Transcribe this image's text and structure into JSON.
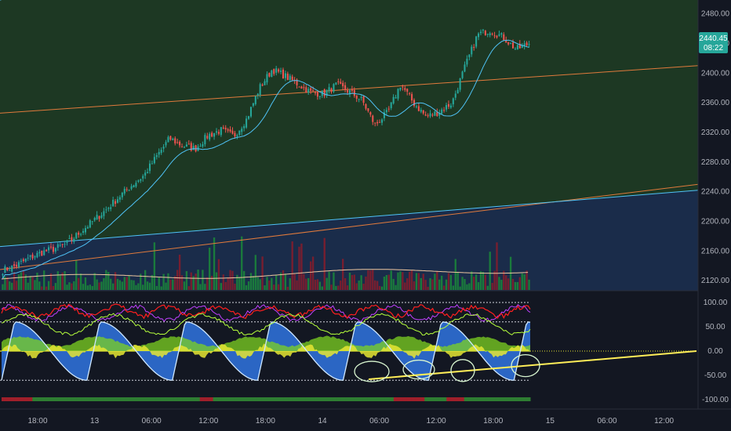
{
  "colors": {
    "background": "#131722",
    "green_zone": "#1e3a24",
    "blue_zone": "#1a2c4a",
    "candle_up": "#26a69a",
    "candle_down": "#ef5350",
    "ma_line": "#4fc3f7",
    "trend_orange": "#e07a3c",
    "trend_yellow": "#ffd54f",
    "volume_up": "#1b8a3a",
    "volume_down": "#8a1c2a",
    "oscillator_red": "#ff1f1f",
    "oscillator_purple": "#c040ff",
    "oscillator_green": "#7ed321",
    "oscillator_blue": "#2f6fd6",
    "oscillator_yellow": "#e6e632",
    "drawn_line": "#ffee58",
    "price_badge": "#26a69a"
  },
  "price_badge": {
    "price": "2440.45",
    "countdown": "08:22"
  },
  "chart_data": [
    {
      "type": "candlestick",
      "x_ticks": [
        "18:00",
        "13",
        "06:00",
        "12:00",
        "18:00",
        "14",
        "06:00",
        "12:00",
        "18:00",
        "15",
        "06:00",
        "12:00"
      ],
      "y_ticks": [
        "2480.00",
        "2440.00",
        "2400.00",
        "2360.00",
        "2320.00",
        "2280.00",
        "2240.00",
        "2200.00",
        "2160.00",
        "2120.00"
      ],
      "ylim": [
        2116,
        2488
      ],
      "anchor_closes": [
        2134,
        2140,
        2150,
        2158,
        2163,
        2170,
        2185,
        2200,
        2215,
        2232,
        2248,
        2262,
        2288,
        2312,
        2302,
        2298,
        2316,
        2323,
        2315,
        2338,
        2380,
        2405,
        2396,
        2385,
        2374,
        2372,
        2384,
        2375,
        2363,
        2330,
        2347,
        2385,
        2360,
        2341,
        2348,
        2360,
        2408,
        2452,
        2458,
        2448,
        2432,
        2440
      ],
      "trendlines": [
        {
          "color_key": "trend_orange",
          "from": [
            "start",
            2346
          ],
          "to": [
            "end",
            2410
          ]
        },
        {
          "color_key": "trend_orange",
          "from": [
            "start",
            2135
          ],
          "to": [
            "end",
            2250
          ]
        },
        {
          "color_key": "ma_line",
          "from": [
            "start",
            2166
          ],
          "to": [
            "end",
            2242
          ]
        }
      ],
      "grid": false
    },
    {
      "type": "area",
      "name": "oscillator",
      "y_ticks": [
        "100.00",
        "50.00",
        "0.00",
        "-50.00",
        "-100.00"
      ],
      "ylim": [
        -115,
        112
      ],
      "levels": [
        100,
        60,
        0,
        -60
      ]
    }
  ]
}
